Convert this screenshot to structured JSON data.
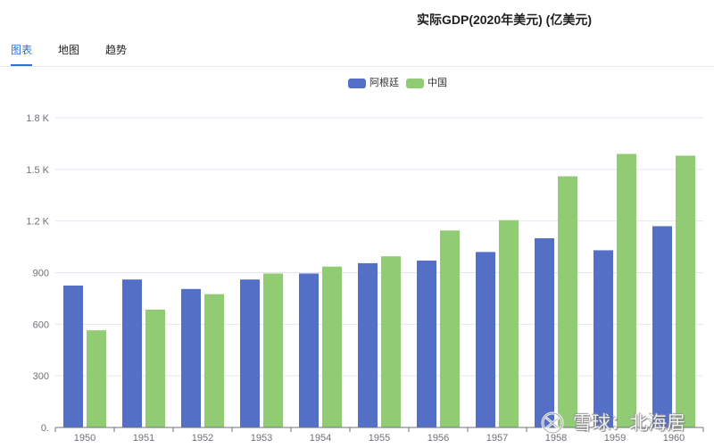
{
  "tabs": [
    {
      "label": "图表",
      "active": true
    },
    {
      "label": "地图",
      "active": false
    },
    {
      "label": "趋势",
      "active": false
    }
  ],
  "colors": {
    "accent": "#2f6fde",
    "grid": "#e0e6f1",
    "axis": "#6e7079"
  },
  "chart_data": {
    "type": "bar",
    "title": "实际GDP(2020年美元) (亿美元)",
    "xlabel": "",
    "ylabel": "",
    "categories": [
      "1950",
      "1951",
      "1952",
      "1953",
      "1954",
      "1955",
      "1956",
      "1957",
      "1958",
      "1959",
      "1960"
    ],
    "series": [
      {
        "name": "阿根廷",
        "color": "#5470c6",
        "values": [
          825,
          860,
          805,
          860,
          895,
          955,
          970,
          1020,
          1100,
          1030,
          1170
        ]
      },
      {
        "name": "中国",
        "color": "#91cc75",
        "values": [
          565,
          685,
          775,
          895,
          935,
          995,
          1145,
          1205,
          1460,
          1590,
          1580
        ]
      }
    ],
    "ylim": [
      0,
      1800
    ],
    "ytick_values": [
      0,
      300,
      600,
      900,
      1200,
      1500,
      1800
    ],
    "ytick_labels": [
      "0.",
      "300",
      "600",
      "900",
      "1.2 K",
      "1.5 K",
      "1.8 K"
    ],
    "grid": true,
    "legend": "top-center"
  },
  "watermark": {
    "text": "雪球：北海居",
    "icon": "xueqiu-logo-icon"
  }
}
